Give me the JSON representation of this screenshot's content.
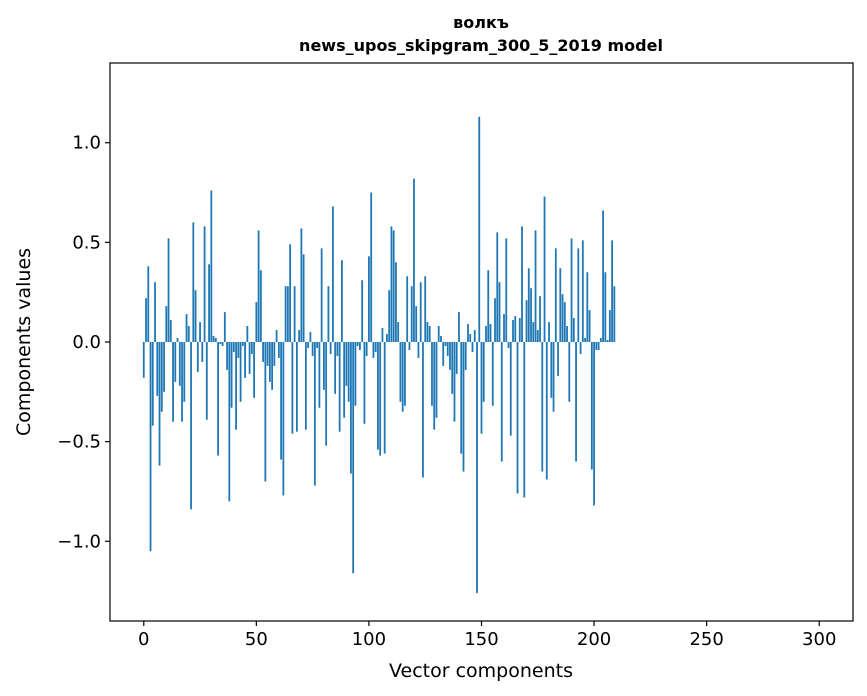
{
  "chart_data": {
    "type": "bar",
    "title": "волкъ",
    "subtitle": "news_upos_skipgram_300_5_2019 model",
    "xlabel": "Vector components",
    "ylabel": "Components values",
    "xlim": [
      -15,
      315
    ],
    "ylim": [
      -1.4,
      1.4
    ],
    "xticks": [
      0,
      50,
      100,
      150,
      200,
      250,
      300
    ],
    "yticks": [
      -1.0,
      -0.5,
      0.0,
      0.5,
      1.0
    ],
    "ytick_labels": [
      "−1.0",
      "−0.5",
      "0.0",
      "0.5",
      "1.0"
    ],
    "color": "#1f77b4",
    "values": [
      -0.18,
      0.22,
      0.38,
      -1.05,
      -0.42,
      0.3,
      -0.27,
      -0.62,
      -0.35,
      -0.25,
      0.18,
      0.52,
      0.11,
      -0.4,
      -0.2,
      0.02,
      -0.22,
      -0.4,
      -0.3,
      0.14,
      0.08,
      -0.84,
      0.6,
      0.26,
      -0.15,
      0.1,
      -0.1,
      0.58,
      -0.39,
      0.39,
      0.76,
      0.03,
      0.02,
      -0.57,
      -0.01,
      -0.02,
      0.15,
      -0.14,
      -0.8,
      -0.33,
      -0.05,
      -0.44,
      -0.08,
      -0.3,
      -0.02,
      -0.18,
      0.08,
      -0.16,
      -0.06,
      -0.28,
      0.2,
      0.56,
      0.36,
      -0.1,
      -0.7,
      -0.12,
      -0.2,
      -0.24,
      -0.12,
      0.06,
      -0.08,
      -0.59,
      -0.77,
      0.28,
      0.28,
      0.49,
      -0.46,
      0.28,
      -0.45,
      0.06,
      0.57,
      0.44,
      -0.44,
      -0.03,
      0.05,
      -0.07,
      -0.72,
      -0.03,
      -0.33,
      0.47,
      -0.24,
      -0.52,
      0.28,
      -0.06,
      0.68,
      -0.26,
      -0.07,
      -0.45,
      0.41,
      -0.38,
      -0.22,
      -0.3,
      -0.66,
      -1.16,
      -0.32,
      -0.02,
      -0.04,
      0.31,
      -0.41,
      -0.07,
      0.43,
      0.75,
      -0.08,
      -0.05,
      -0.54,
      -0.57,
      0.07,
      -0.56,
      0.04,
      0.26,
      0.58,
      0.56,
      0.4,
      0.1,
      -0.3,
      -0.35,
      -0.32,
      0.33,
      -0.04,
      0.28,
      0.82,
      0.18,
      -0.08,
      0.3,
      -0.68,
      0.33,
      0.1,
      0.08,
      -0.32,
      -0.44,
      -0.38,
      0.08,
      0.03,
      -0.12,
      -0.02,
      -0.07,
      -0.14,
      -0.26,
      -0.4,
      -0.16,
      0.15,
      -0.56,
      -0.65,
      -0.14,
      0.09,
      0.04,
      -0.05,
      0.06,
      -1.26,
      1.13,
      -0.46,
      -0.3,
      0.08,
      0.36,
      0.09,
      -0.32,
      0.22,
      0.55,
      0.3,
      -0.6,
      0.14,
      0.52,
      -0.03,
      -0.47,
      0.11,
      0.13,
      -0.76,
      0.12,
      0.58,
      -0.78,
      0.21,
      0.37,
      0.27,
      0.1,
      0.56,
      0.06,
      0.23,
      -0.65,
      0.73,
      -0.69,
      0.1,
      -0.28,
      -0.35,
      0.47,
      -0.17,
      0.37,
      0.24,
      0.2,
      0.08,
      -0.3,
      0.52,
      0.12,
      -0.6,
      0.47,
      -0.06,
      0.51,
      0.02,
      0.35,
      0.16,
      -0.64,
      -0.82,
      -0.04,
      -0.04,
      0.02,
      0.66,
      0.35,
      0.01,
      0.16,
      0.51,
      0.28
    ]
  }
}
